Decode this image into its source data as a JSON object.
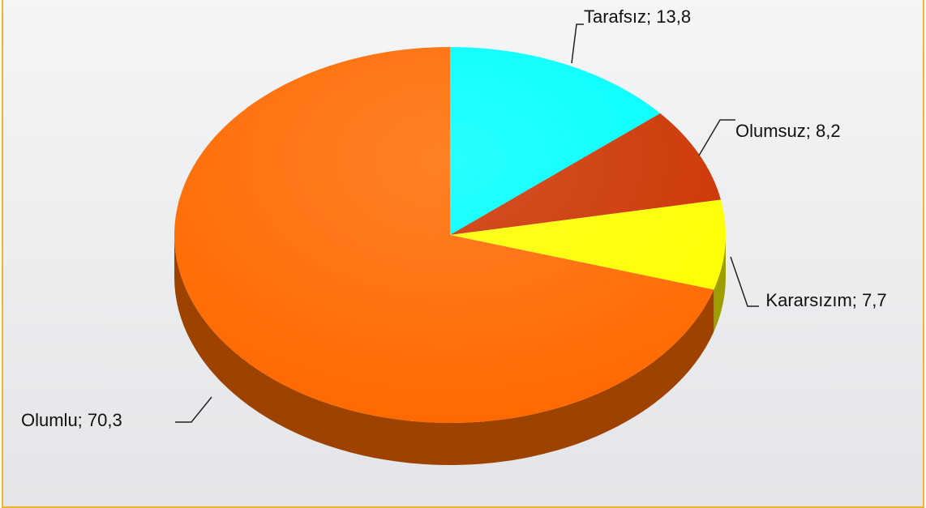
{
  "chart_data": {
    "type": "pie",
    "three_d": true,
    "labels": [
      "Tarafsız; 13,8",
      "Olumsuz; 8,2",
      "Kararsızım; 7,7",
      "Olumlu; 70,3"
    ],
    "values": [
      13.8,
      8.2,
      7.7,
      70.3
    ],
    "colors": [
      "#00ffff",
      "#cc3300",
      "#ffff00",
      "#ff6a00"
    ]
  }
}
